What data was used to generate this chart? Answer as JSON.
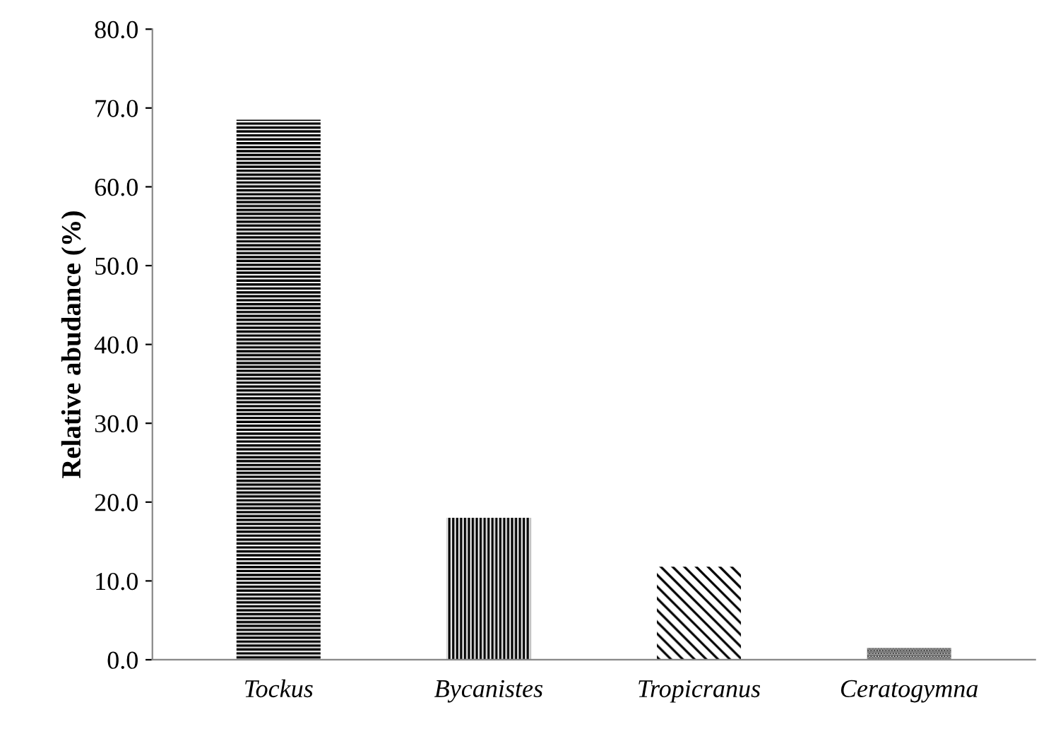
{
  "chart_data": {
    "type": "bar",
    "ylabel": "Relative abudance (%)",
    "categories": [
      "Tockus",
      "Bycanistes",
      "Tropicranus",
      "Ceratogymna"
    ],
    "values": [
      68.5,
      18.0,
      11.8,
      1.5
    ],
    "color": "#000000",
    "ylim": [
      0,
      80
    ],
    "yticks": [
      {
        "value": 0,
        "label": "0.0"
      },
      {
        "value": 10,
        "label": "10.0"
      },
      {
        "value": 20,
        "label": "20.0"
      },
      {
        "value": 30,
        "label": "30.0"
      },
      {
        "value": 40,
        "label": "40.0"
      },
      {
        "value": 50,
        "label": "50.0"
      },
      {
        "value": 60,
        "label": "60.0"
      },
      {
        "value": 70,
        "label": "70.0"
      },
      {
        "value": 80,
        "label": "80.0"
      }
    ],
    "grid": false
  }
}
